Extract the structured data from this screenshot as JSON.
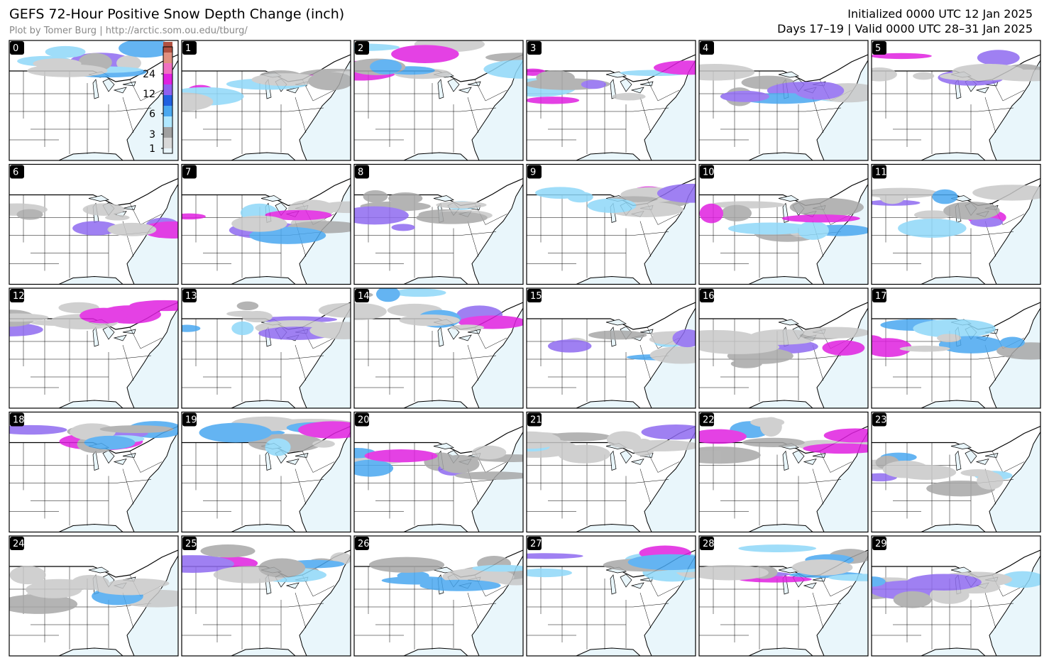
{
  "header": {
    "title": "GEFS 72-Hour Positive Snow Depth Change (inch)",
    "credit": "Plot by Tomer Burg | http://arctic.som.ou.edu/tburg/",
    "initialized": "Initialized 0000 UTC 12 Jan 2025",
    "valid": "Days 17–19 | Valid 0000 UTC 28–31 Jan 2025"
  },
  "colorbar": {
    "ticks": [
      1,
      3,
      6,
      12,
      24
    ]
  },
  "panels": [
    "0",
    "1",
    "2",
    "3",
    "4",
    "5",
    "6",
    "7",
    "8",
    "9",
    "10",
    "11",
    "12",
    "13",
    "14",
    "15",
    "16",
    "17",
    "18",
    "19",
    "20",
    "21",
    "22",
    "23",
    "24",
    "25",
    "26",
    "27",
    "28",
    "29"
  ]
}
